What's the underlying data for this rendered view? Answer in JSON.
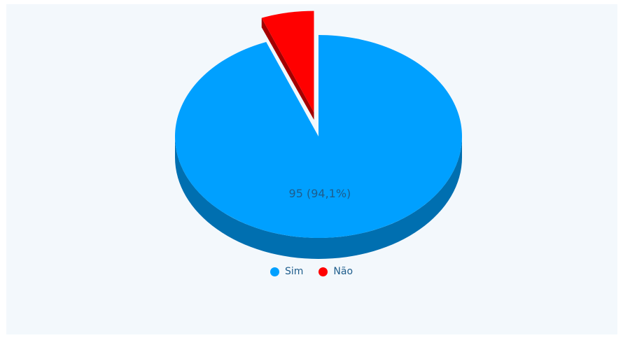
{
  "chart_data": {
    "type": "pie",
    "title": "",
    "slices": [
      {
        "name": "Sim",
        "value": 95,
        "label": "95 (94,1%)",
        "color": "#00a0ff",
        "side_color": "#006fb0"
      },
      {
        "name": "Não",
        "value": 6,
        "label": "",
        "color": "#ff0000",
        "side_color": "#a30000"
      }
    ],
    "legend_position": "bottom-center",
    "exploded_slice": "Não",
    "three_d": true
  },
  "colors": {
    "background": "#f3f8fc",
    "label_text": "#1e5d8c"
  }
}
